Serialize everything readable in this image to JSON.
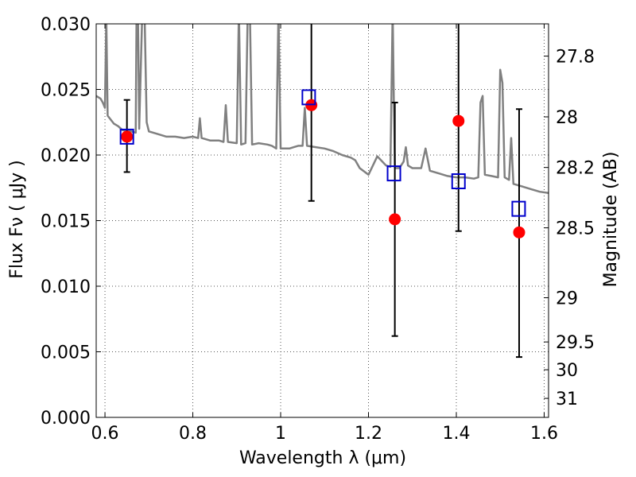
{
  "chart_data": {
    "type": "scatter",
    "xlabel": "Wavelength  λ (μm)",
    "ylabel": "Flux  Fν  ( μJy )",
    "ylabel_right": "Magnitude (AB)",
    "xlim": [
      0.58,
      1.61
    ],
    "ylim": [
      0.0,
      0.03
    ],
    "x_ticks": [
      0.6,
      0.8,
      1.0,
      1.2,
      1.4,
      1.6
    ],
    "x_tick_labels": [
      "0.6",
      "0.8",
      "1",
      "1.2",
      "1.4",
      "1.6"
    ],
    "y_ticks": [
      0.0,
      0.005,
      0.01,
      0.015,
      0.02,
      0.025,
      0.03
    ],
    "y_tick_labels": [
      "0.000",
      "0.005",
      "0.010",
      "0.015",
      "0.020",
      "0.025",
      "0.030"
    ],
    "right_ticks": [
      {
        "label": "27.8",
        "flux": 0.02754
      },
      {
        "label": "28",
        "flux": 0.02291
      },
      {
        "label": "28.2",
        "flux": 0.01905
      },
      {
        "label": "28.5",
        "flux": 0.01445
      },
      {
        "label": "29",
        "flux": 0.00912
      },
      {
        "label": "29.5",
        "flux": 0.00575
      },
      {
        "label": "30",
        "flux": 0.00363
      },
      {
        "label": "31",
        "flux": 0.00145
      }
    ],
    "grid": true,
    "colors": {
      "observed": "#ff0000",
      "model": "#0000cc",
      "error_bar": "#000000",
      "spectrum": "#808080",
      "grid": "#555555"
    },
    "series": [
      {
        "name": "observed",
        "marker": "circle",
        "points": [
          {
            "x": 0.65,
            "y": 0.0214,
            "err_low": 0.0187,
            "err_high": 0.0242
          },
          {
            "x": 1.07,
            "y": 0.0238,
            "err_low": 0.0165,
            "err_high": 0.031
          },
          {
            "x": 1.26,
            "y": 0.0151,
            "err_low": 0.0062,
            "err_high": 0.024
          },
          {
            "x": 1.405,
            "y": 0.0226,
            "err_low": 0.0142,
            "err_high": 0.031
          },
          {
            "x": 1.543,
            "y": 0.0141,
            "err_low": 0.0046,
            "err_high": 0.0235
          }
        ]
      },
      {
        "name": "model",
        "marker": "square",
        "points": [
          {
            "x": 0.65,
            "y": 0.0214
          },
          {
            "x": 1.064,
            "y": 0.0244
          },
          {
            "x": 1.258,
            "y": 0.0186
          },
          {
            "x": 1.405,
            "y": 0.018
          },
          {
            "x": 1.542,
            "y": 0.0159
          }
        ]
      },
      {
        "name": "spectrum",
        "type": "line",
        "points": [
          [
            0.58,
            0.0245
          ],
          [
            0.59,
            0.0243
          ],
          [
            0.595,
            0.024
          ],
          [
            0.6,
            0.0236
          ],
          [
            0.603,
            0.0305
          ],
          [
            0.606,
            0.023
          ],
          [
            0.62,
            0.0224
          ],
          [
            0.63,
            0.0222
          ],
          [
            0.64,
            0.0219
          ],
          [
            0.66,
            0.0218
          ],
          [
            0.67,
            0.0217
          ],
          [
            0.672,
            0.031
          ],
          [
            0.675,
            0.031
          ],
          [
            0.678,
            0.022
          ],
          [
            0.685,
            0.031
          ],
          [
            0.69,
            0.031
          ],
          [
            0.695,
            0.0225
          ],
          [
            0.7,
            0.0218
          ],
          [
            0.72,
            0.0216
          ],
          [
            0.74,
            0.0214
          ],
          [
            0.76,
            0.0214
          ],
          [
            0.78,
            0.0213
          ],
          [
            0.8,
            0.0214
          ],
          [
            0.812,
            0.0213
          ],
          [
            0.816,
            0.0228
          ],
          [
            0.82,
            0.0213
          ],
          [
            0.84,
            0.0211
          ],
          [
            0.86,
            0.0211
          ],
          [
            0.87,
            0.021
          ],
          [
            0.875,
            0.0238
          ],
          [
            0.88,
            0.021
          ],
          [
            0.9,
            0.0209
          ],
          [
            0.905,
            0.031
          ],
          [
            0.91,
            0.0208
          ],
          [
            0.92,
            0.0209
          ],
          [
            0.925,
            0.031
          ],
          [
            0.93,
            0.031
          ],
          [
            0.935,
            0.0208
          ],
          [
            0.95,
            0.0209
          ],
          [
            0.97,
            0.0208
          ],
          [
            0.98,
            0.0207
          ],
          [
            0.99,
            0.0205
          ],
          [
            0.995,
            0.031
          ],
          [
            1.0,
            0.0205
          ],
          [
            1.02,
            0.0205
          ],
          [
            1.03,
            0.0206
          ],
          [
            1.04,
            0.0207
          ],
          [
            1.05,
            0.0207
          ],
          [
            1.055,
            0.0236
          ],
          [
            1.06,
            0.0207
          ],
          [
            1.08,
            0.0206
          ],
          [
            1.1,
            0.0205
          ],
          [
            1.12,
            0.0203
          ],
          [
            1.14,
            0.02
          ],
          [
            1.16,
            0.0198
          ],
          [
            1.17,
            0.0196
          ],
          [
            1.18,
            0.019
          ],
          [
            1.2,
            0.0185
          ],
          [
            1.22,
            0.0199
          ],
          [
            1.24,
            0.0192
          ],
          [
            1.25,
            0.0191
          ],
          [
            1.255,
            0.031
          ],
          [
            1.258,
            0.0235
          ],
          [
            1.26,
            0.019
          ],
          [
            1.27,
            0.019
          ],
          [
            1.28,
            0.0195
          ],
          [
            1.285,
            0.0206
          ],
          [
            1.29,
            0.0192
          ],
          [
            1.3,
            0.019
          ],
          [
            1.32,
            0.019
          ],
          [
            1.33,
            0.0205
          ],
          [
            1.34,
            0.0188
          ],
          [
            1.36,
            0.0186
          ],
          [
            1.38,
            0.0184
          ],
          [
            1.4,
            0.0183
          ],
          [
            1.42,
            0.0183
          ],
          [
            1.44,
            0.0182
          ],
          [
            1.45,
            0.0183
          ],
          [
            1.455,
            0.024
          ],
          [
            1.46,
            0.0245
          ],
          [
            1.465,
            0.0185
          ],
          [
            1.48,
            0.0184
          ],
          [
            1.495,
            0.0183
          ],
          [
            1.5,
            0.0265
          ],
          [
            1.505,
            0.0255
          ],
          [
            1.51,
            0.0183
          ],
          [
            1.52,
            0.0181
          ],
          [
            1.525,
            0.0213
          ],
          [
            1.53,
            0.0178
          ],
          [
            1.55,
            0.0176
          ],
          [
            1.57,
            0.0174
          ],
          [
            1.59,
            0.0172
          ],
          [
            1.61,
            0.0171
          ]
        ]
      }
    ]
  }
}
